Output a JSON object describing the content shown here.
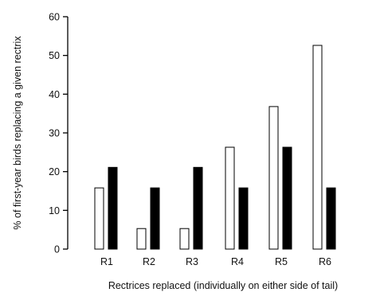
{
  "colors": {
    "series_open": "#ffffff",
    "series_filled": "#000000",
    "axis": "#000000"
  },
  "chart_data": {
    "type": "bar",
    "title": "",
    "xlabel": "Rectrices replaced (individually on either side of tail)",
    "ylabel": "% of first-year birds replacing a given rectrix",
    "categories": [
      "R1",
      "R2",
      "R3",
      "R4",
      "R5",
      "R6"
    ],
    "yticks": [
      "0",
      "10",
      "20",
      "30",
      "40",
      "50",
      "60"
    ],
    "ylim": [
      0,
      60
    ],
    "grid": false,
    "legend": "none",
    "series": [
      {
        "style": "open",
        "values": [
          15.8,
          5.3,
          5.3,
          26.3,
          36.8,
          52.6
        ]
      },
      {
        "style": "filled",
        "values": [
          21.1,
          15.8,
          21.1,
          15.8,
          26.3,
          15.8
        ]
      }
    ]
  }
}
